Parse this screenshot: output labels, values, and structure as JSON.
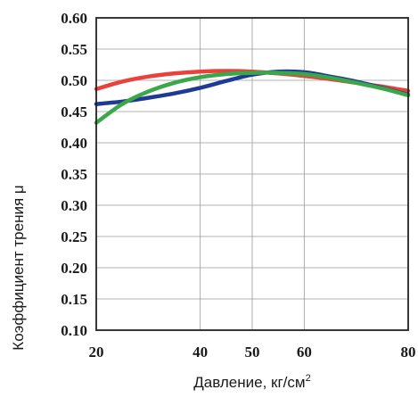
{
  "chart_data": {
    "type": "line",
    "title": "",
    "xlabel": "Давление, кг/см",
    "xlabel_sup": "2",
    "ylabel": "Коэффициент трения μ",
    "xlim": [
      20,
      80
    ],
    "ylim": [
      0.1,
      0.6
    ],
    "xticks": [
      "20",
      "40",
      "50",
      "60",
      "80"
    ],
    "xtick_values": [
      20,
      40,
      50,
      60,
      80
    ],
    "yticks": [
      "0.10",
      "0.15",
      "0.20",
      "0.25",
      "0.30",
      "0.35",
      "0.40",
      "0.45",
      "0.50",
      "0.55",
      "0.60"
    ],
    "grid": true,
    "legend": "none",
    "series": [
      {
        "color": "#e8423a",
        "x": [
          20,
          25,
          30,
          35,
          40,
          45,
          50,
          55,
          60,
          65,
          70,
          75,
          80
        ],
        "y": [
          0.486,
          0.498,
          0.506,
          0.511,
          0.514,
          0.515,
          0.514,
          0.511,
          0.507,
          0.502,
          0.496,
          0.49,
          0.483
        ]
      },
      {
        "color": "#1f3a93",
        "x": [
          20,
          25,
          30,
          35,
          40,
          45,
          50,
          55,
          60,
          65,
          70,
          75,
          80
        ],
        "y": [
          0.462,
          0.466,
          0.472,
          0.479,
          0.488,
          0.499,
          0.509,
          0.514,
          0.513,
          0.506,
          0.498,
          0.488,
          0.477
        ]
      },
      {
        "color": "#3aa84a",
        "x": [
          20,
          25,
          30,
          35,
          40,
          45,
          50,
          55,
          60,
          65,
          70,
          75,
          80
        ],
        "y": [
          0.432,
          0.462,
          0.482,
          0.496,
          0.505,
          0.51,
          0.512,
          0.512,
          0.51,
          0.504,
          0.496,
          0.487,
          0.476
        ]
      }
    ]
  }
}
